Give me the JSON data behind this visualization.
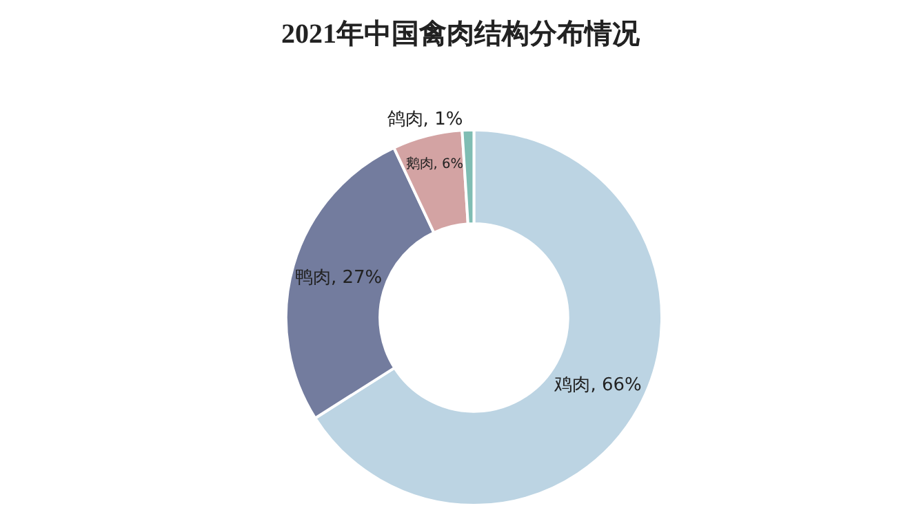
{
  "chart_data": {
    "type": "donut",
    "title": "2021年中国禽肉结构分布情况",
    "categories": [
      "鸡肉",
      "鸭肉",
      "鹅肉",
      "鸽肉"
    ],
    "values": [
      66,
      27,
      6,
      1
    ],
    "colors": [
      "#bcd4e3",
      "#737c9e",
      "#d3a3a3",
      "#7fbdb3"
    ],
    "value_labels": [
      "66%",
      "27%",
      "6%",
      "1%"
    ],
    "legend": false
  }
}
